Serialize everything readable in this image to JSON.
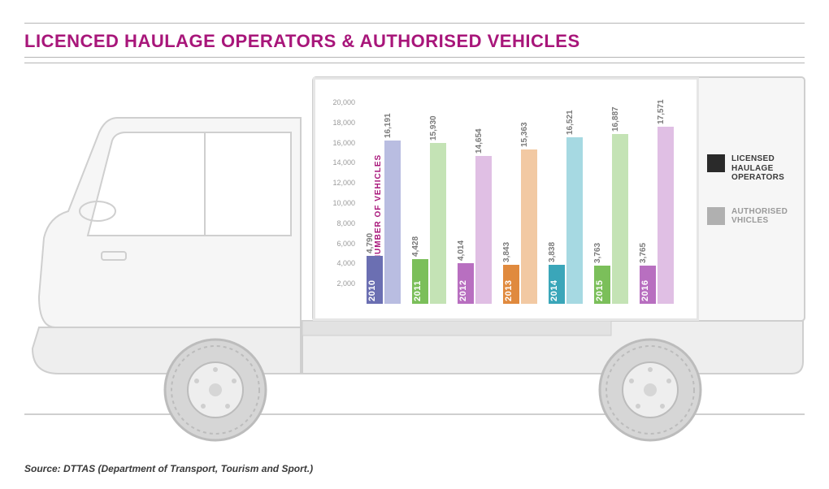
{
  "title": "LICENCED HAULAGE OPERATORS & AUTHORISED VEHICLES",
  "source": "Source: DTTAS (Department of Transport, Tourism and Sport.)",
  "chart": {
    "type": "bar",
    "y_axis_title": "NUMBER OF VEHICLES",
    "ylim": [
      0,
      20000
    ],
    "ytick_step": 2000,
    "yticks": [
      "20,000",
      "18,000",
      "16,000",
      "14,000",
      "12,000",
      "10,000",
      "8,000",
      "6,000",
      "4,000",
      "2,000"
    ],
    "years": [
      "2010",
      "2011",
      "2012",
      "2013",
      "2014",
      "2015",
      "2016"
    ],
    "colors": {
      "2010": {
        "dark": "#6b6fb2",
        "light": "#b9bde1"
      },
      "2011": {
        "dark": "#7bbf5a",
        "light": "#c4e3b5"
      },
      "2012": {
        "dark": "#b86fc0",
        "light": "#e0bfe4"
      },
      "2013": {
        "dark": "#e08a3e",
        "light": "#f2c9a3"
      },
      "2014": {
        "dark": "#3aa6b9",
        "light": "#a6d9e2"
      },
      "2015": {
        "dark": "#7bbf5a",
        "light": "#c4e3b5"
      },
      "2016": {
        "dark": "#b86fc0",
        "light": "#e0bfe4"
      }
    },
    "series": {
      "operators": {
        "label": "LICENSED\nHAULAGE\nOPERATORS",
        "values": {
          "2010": "4,790",
          "2011": "4,428",
          "2012": "4,014",
          "2013": "3,843",
          "2014": "3,838",
          "2015": "3,763",
          "2016": "3,765"
        },
        "nums": {
          "2010": 4790,
          "2011": 4428,
          "2012": 4014,
          "2013": 3843,
          "2014": 3838,
          "2015": 3763,
          "2016": 3765
        }
      },
      "vehicles": {
        "label": "AUTHORISED\nVHICLES",
        "values": {
          "2010": "16,191",
          "2011": "15,930",
          "2012": "14,654",
          "2013": "15,363",
          "2014": "16,521",
          "2015": "16,887",
          "2016": "17,571"
        },
        "nums": {
          "2010": 16191,
          "2011": 15930,
          "2012": 14654,
          "2013": 15363,
          "2014": 16521,
          "2015": 16887,
          "2016": 17571
        }
      }
    },
    "legend_swatch_colors": {
      "operators": "#2a2a2a",
      "vehicles": "#b0b0b0"
    },
    "title_color": "#a8167a",
    "background_color": "#ffffff",
    "panel_border": "#e6e6e6",
    "tick_color": "#9a9a9a",
    "bar_label_color": "#7a7a7a"
  },
  "truck": {
    "stroke": "#cfcfcf",
    "fill": "#f2f2f2",
    "tire_fill": "#d6d6d6",
    "tire_stroke": "#bcbcbc",
    "road_color": "#cfcfcf"
  }
}
